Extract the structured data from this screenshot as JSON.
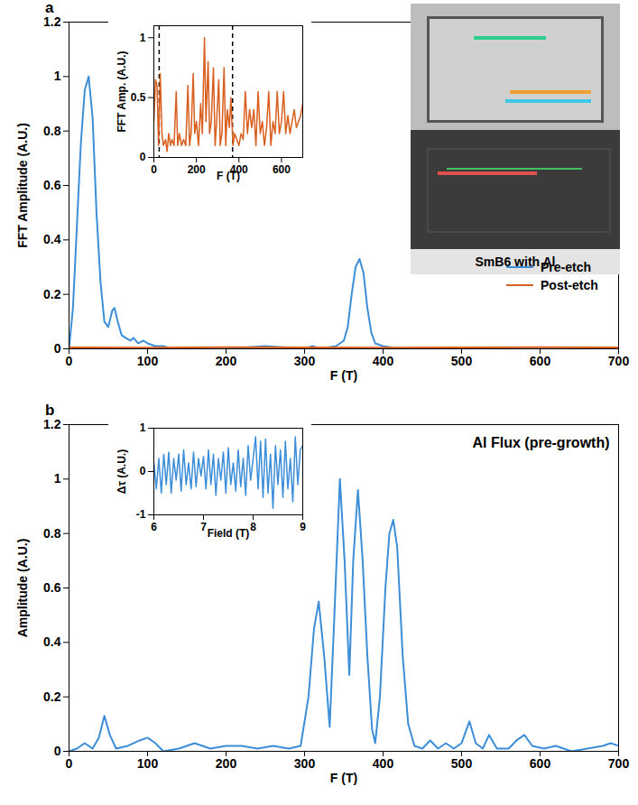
{
  "chart_data": [
    {
      "panel": "a",
      "type": "line",
      "xlabel": "F (T)",
      "ylabel": "FFT Amplitude (A.U.)",
      "xlim": [
        0,
        700
      ],
      "xticks": [
        0,
        100,
        200,
        300,
        400,
        500,
        600,
        700
      ],
      "ylim": [
        0,
        1.2
      ],
      "yticks": [
        0,
        0.2,
        0.4,
        0.6,
        0.8,
        1,
        1.2
      ],
      "legend": "right",
      "series": [
        {
          "name": "Pre-etch",
          "color": "#3d8ed8",
          "x": [
            0,
            5,
            10,
            15,
            20,
            25,
            30,
            35,
            40,
            45,
            50,
            55,
            58,
            62,
            67,
            72,
            78,
            82,
            88,
            95,
            100,
            110,
            120,
            130,
            150,
            200,
            250,
            300,
            310,
            320,
            340,
            350,
            355,
            360,
            365,
            370,
            375,
            380,
            385,
            390,
            400,
            420,
            500,
            600,
            700
          ],
          "values": [
            0,
            0.15,
            0.45,
            0.75,
            0.95,
            1,
            0.85,
            0.5,
            0.25,
            0.1,
            0.08,
            0.14,
            0.15,
            0.1,
            0.05,
            0.04,
            0.03,
            0.04,
            0.02,
            0.03,
            0.02,
            0.01,
            0.01,
            0,
            0,
            0,
            0.01,
            0,
            0.01,
            0,
            0.01,
            0.03,
            0.08,
            0.2,
            0.3,
            0.33,
            0.28,
            0.15,
            0.06,
            0.02,
            0.01,
            0,
            0,
            0,
            0
          ]
        },
        {
          "name": "Post-etch",
          "color": "#d95f1e",
          "x": [
            0,
            100,
            200,
            300,
            400,
            500,
            600,
            700
          ],
          "values": [
            0.005,
            0.004,
            0.006,
            0.005,
            0.004,
            0.005,
            0.006,
            0.005
          ]
        }
      ],
      "image": {
        "label": "SmB6 with Al"
      },
      "inset": {
        "type": "line",
        "xlabel": "F (T)",
        "ylabel": "FFT Amp. (A.U.)",
        "xlim": [
          0,
          700
        ],
        "xticks": [
          0,
          200,
          400,
          600
        ],
        "ylim": [
          0,
          1.1
        ],
        "yticks": [
          0,
          0.5,
          1
        ],
        "vlines": [
          25,
          370
        ],
        "series": [
          {
            "color": "#d95f1e",
            "x": [
              0,
              8,
              15,
              22,
              30,
              38,
              45,
              55,
              62,
              70,
              78,
              85,
              95,
              105,
              112,
              120,
              130,
              140,
              150,
              160,
              168,
              175,
              185,
              192,
              200,
              210,
              220,
              228,
              238,
              245,
              255,
              262,
              270,
              280,
              288,
              295,
              305,
              312,
              320,
              330,
              338,
              345,
              355,
              362,
              372,
              380,
              390,
              400,
              410,
              420,
              430,
              440,
              450,
              460,
              470,
              480,
              490,
              500,
              510,
              520,
              530,
              540,
              550,
              560,
              570,
              580,
              590,
              600,
              610,
              620,
              630,
              640,
              650,
              660,
              670,
              680,
              690,
              700
            ],
            "values": [
              0.3,
              0.65,
              0.6,
              0.1,
              0.7,
              0.2,
              0.1,
              0.15,
              0.05,
              0.2,
              0.1,
              0.15,
              0.1,
              0.55,
              0.1,
              0.2,
              0.1,
              0.15,
              0.1,
              0.6,
              0.1,
              0.2,
              0.7,
              0.2,
              0.3,
              0.1,
              0.45,
              0.2,
              1,
              0.3,
              0.8,
              0.2,
              0.3,
              0.75,
              0.1,
              0.3,
              0.65,
              0.1,
              0.2,
              0.75,
              0.1,
              0.4,
              0.25,
              0.5,
              0.1,
              0.2,
              0.15,
              0.1,
              0.2,
              0.15,
              0.55,
              0.2,
              0.4,
              0.25,
              0.4,
              0.1,
              0.55,
              0.2,
              0.3,
              0.1,
              0.25,
              0.55,
              0.1,
              0.3,
              0.2,
              0.55,
              0.2,
              0.3,
              0.55,
              0.2,
              0.35,
              0.2,
              0.3,
              0.4,
              0.25,
              0.3,
              0.35,
              0.45
            ]
          }
        ]
      }
    },
    {
      "panel": "b",
      "type": "line",
      "xlabel": "F (T)",
      "ylabel": "Amplitude (A.U.)",
      "xlim": [
        0,
        700
      ],
      "xticks": [
        0,
        100,
        200,
        300,
        400,
        500,
        600,
        700
      ],
      "ylim": [
        0,
        1.2
      ],
      "yticks": [
        0,
        0.2,
        0.4,
        0.6,
        0.8,
        1,
        1.2
      ],
      "annotation": "Al Flux (pre-growth)",
      "series": [
        {
          "color": "#3d8ed8",
          "x": [
            0,
            10,
            20,
            30,
            38,
            45,
            52,
            60,
            75,
            90,
            100,
            110,
            120,
            140,
            160,
            180,
            200,
            220,
            240,
            260,
            280,
            295,
            305,
            312,
            318,
            325,
            332,
            338,
            345,
            351,
            357,
            362,
            368,
            374,
            380,
            386,
            390,
            396,
            403,
            408,
            413,
            418,
            425,
            432,
            440,
            450,
            460,
            470,
            480,
            490,
            500,
            510,
            518,
            527,
            535,
            545,
            560,
            570,
            580,
            590,
            605,
            620,
            640,
            660,
            680,
            690,
            700
          ],
          "values": [
            0,
            0.01,
            0.03,
            0.01,
            0.05,
            0.13,
            0.06,
            0.01,
            0.02,
            0.04,
            0.05,
            0.03,
            0,
            0.01,
            0.03,
            0.01,
            0.02,
            0.02,
            0.01,
            0.02,
            0.01,
            0.02,
            0.2,
            0.45,
            0.55,
            0.35,
            0.09,
            0.5,
            1,
            0.7,
            0.28,
            0.7,
            0.96,
            0.7,
            0.35,
            0.08,
            0.03,
            0.2,
            0.6,
            0.8,
            0.85,
            0.75,
            0.35,
            0.1,
            0.02,
            0.01,
            0.04,
            0.01,
            0.03,
            0.01,
            0.03,
            0.11,
            0.03,
            0.01,
            0.06,
            0.01,
            0.01,
            0.04,
            0.06,
            0.02,
            0.01,
            0.02,
            0,
            0.01,
            0.02,
            0.03,
            0.02
          ]
        }
      ],
      "inset": {
        "type": "line",
        "xlabel": "Field (T)",
        "ylabel": "Δτ (A.U.)",
        "xlim": [
          6,
          9
        ],
        "xticks": [
          6,
          7,
          8,
          9
        ],
        "ylim": [
          -1,
          1
        ],
        "yticks": [
          -1,
          0,
          1
        ],
        "series": [
          {
            "color": "#3d8ed8",
            "x": [
              6,
              6.05,
              6.1,
              6.15,
              6.2,
              6.25,
              6.3,
              6.35,
              6.4,
              6.45,
              6.5,
              6.55,
              6.6,
              6.65,
              6.7,
              6.75,
              6.8,
              6.85,
              6.9,
              6.95,
              7,
              7.05,
              7.1,
              7.15,
              7.2,
              7.25,
              7.3,
              7.35,
              7.4,
              7.45,
              7.5,
              7.55,
              7.6,
              7.65,
              7.7,
              7.75,
              7.8,
              7.85,
              7.9,
              7.95,
              8,
              8.05,
              8.1,
              8.15,
              8.2,
              8.25,
              8.3,
              8.35,
              8.4,
              8.45,
              8.5,
              8.55,
              8.6,
              8.65,
              8.7,
              8.75,
              8.8,
              8.85,
              8.9,
              8.95,
              9
            ],
            "values": [
              0.2,
              -0.4,
              0.3,
              -0.5,
              0.4,
              -0.3,
              0.45,
              -0.5,
              0.3,
              -0.2,
              0.4,
              -0.45,
              0.5,
              -0.3,
              0.2,
              -0.4,
              0.45,
              -0.35,
              0.3,
              -0.1,
              0.35,
              -0.4,
              0.5,
              -0.3,
              0.4,
              -0.55,
              0.3,
              -0.2,
              0.45,
              -0.5,
              0.55,
              -0.3,
              0.2,
              -0.45,
              0.5,
              -0.35,
              0.3,
              -0.55,
              0.6,
              -0.2,
              0.3,
              0.8,
              -0.4,
              0.7,
              -0.6,
              0.75,
              -0.5,
              0.4,
              -0.85,
              0.6,
              -0.3,
              0.5,
              -0.6,
              0.7,
              -0.4,
              0.3,
              -0.7,
              0.8,
              -0.3,
              0.5,
              0.6
            ]
          }
        ]
      }
    }
  ]
}
